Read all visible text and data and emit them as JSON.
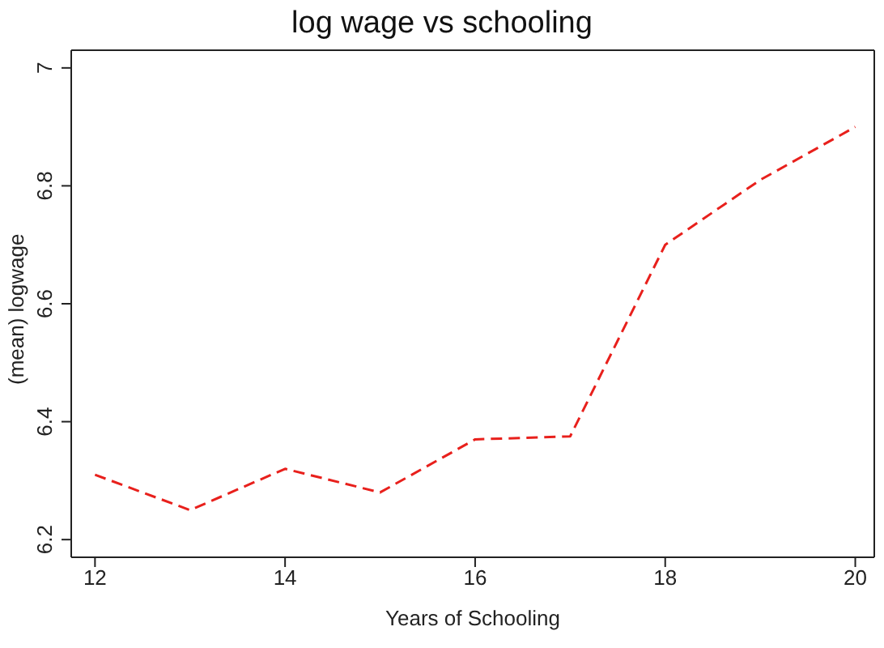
{
  "chart_data": {
    "type": "line",
    "title": "log wage vs schooling",
    "xlabel": "Years of Schooling",
    "ylabel": "(mean) logwage",
    "x": [
      12,
      13,
      14,
      15,
      16,
      17,
      18,
      19,
      20
    ],
    "series": [
      {
        "color": "#e8201c",
        "values": [
          6.31,
          6.25,
          6.32,
          6.28,
          6.37,
          6.375,
          6.7,
          6.81,
          6.9
        ]
      }
    ],
    "xlim": [
      11.75,
      20.2
    ],
    "xticks": [
      12,
      14,
      16,
      18,
      20
    ],
    "ylim": [
      6.17,
      7.03
    ],
    "yticks": [
      6.2,
      6.4,
      6.6,
      6.8,
      7
    ],
    "grid": false,
    "legend": false,
    "marker": "none",
    "line_style": "dashed"
  }
}
